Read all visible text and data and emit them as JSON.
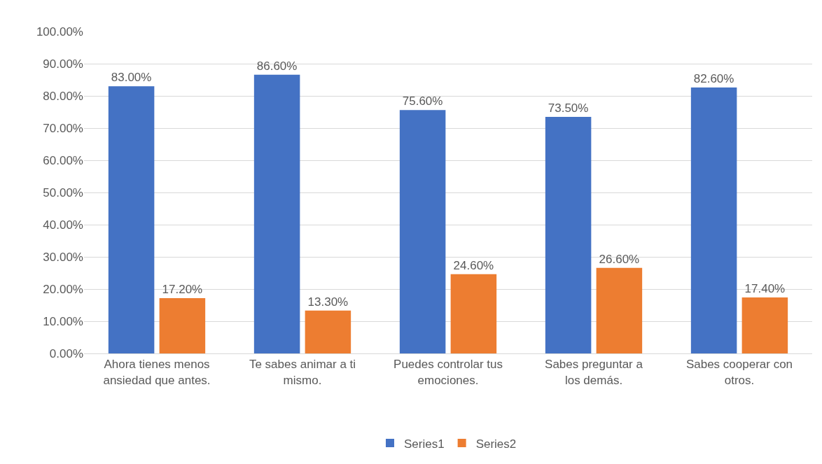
{
  "chart_data": {
    "type": "bar",
    "categories": [
      "Ahora tienes menos ansiedad que antes.",
      "Te sabes animar a ti mismo.",
      "Puedes controlar tus emociones.",
      "Sabes preguntar a los demás.",
      "Sabes cooperar con otros."
    ],
    "series": [
      {
        "name": "Series1",
        "color": "#4472c4",
        "values": [
          83.0,
          86.6,
          75.6,
          73.5,
          82.6
        ],
        "value_labels": [
          "83.00%",
          "86.60%",
          "75.60%",
          "73.50%",
          "82.60%"
        ]
      },
      {
        "name": "Series2",
        "color": "#ed7d31",
        "values": [
          17.2,
          13.3,
          24.6,
          26.6,
          17.4
        ],
        "value_labels": [
          "17.20%",
          "13.30%",
          "24.60%",
          "26.60%",
          "17.40%"
        ]
      }
    ],
    "ylim": [
      0,
      100
    ],
    "yticks": [
      {
        "value": 0,
        "label": "0.00%"
      },
      {
        "value": 10,
        "label": "10.00%"
      },
      {
        "value": 20,
        "label": "20.00%"
      },
      {
        "value": 30,
        "label": "30.00%"
      },
      {
        "value": 40,
        "label": "40.00%"
      },
      {
        "value": 50,
        "label": "50.00%"
      },
      {
        "value": 60,
        "label": "60.00%"
      },
      {
        "value": 70,
        "label": "70.00%"
      },
      {
        "value": 80,
        "label": "80.00%"
      },
      {
        "value": 90,
        "label": "90.00%"
      },
      {
        "value": 100,
        "label": "100.00%"
      }
    ],
    "grid": "y",
    "legend": "bottom"
  }
}
